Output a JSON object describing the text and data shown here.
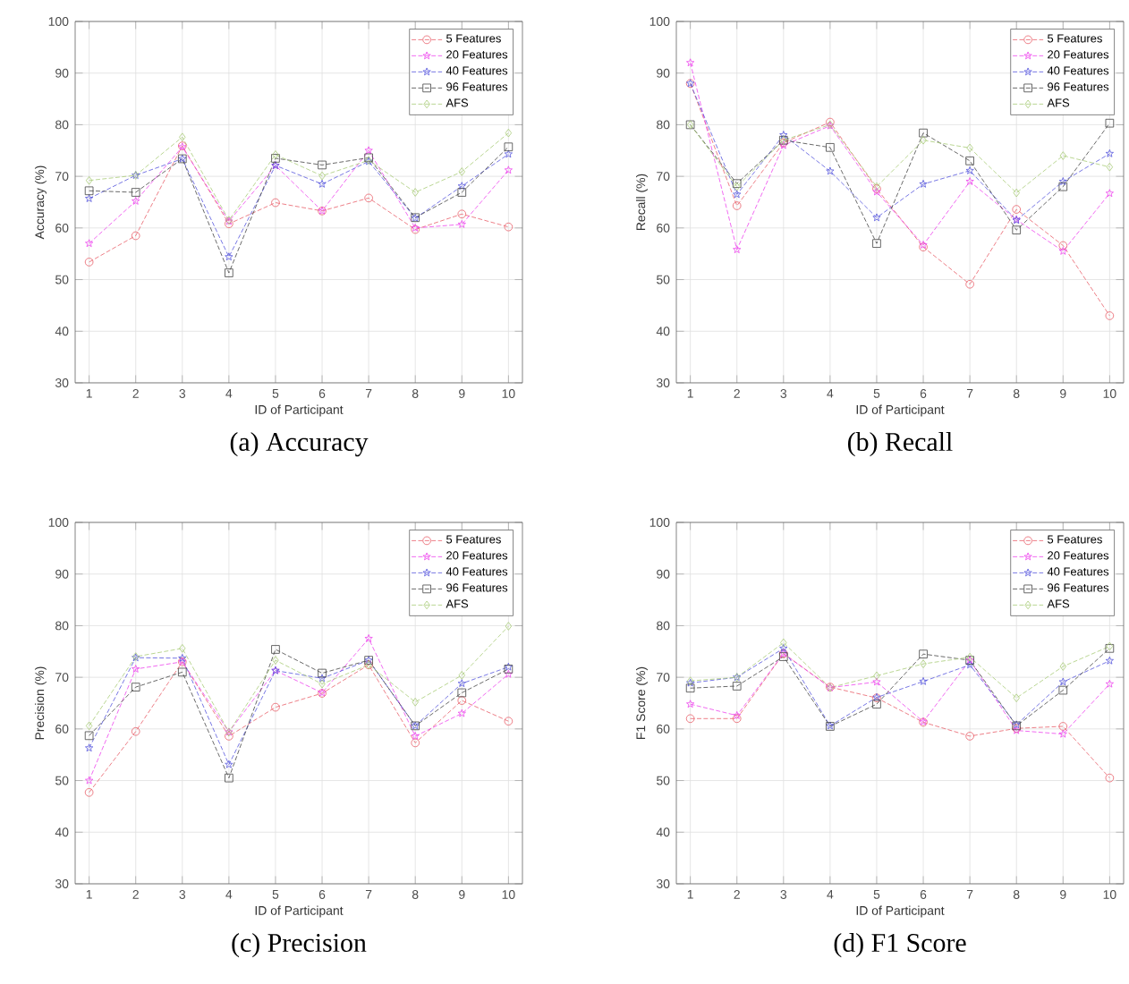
{
  "chart_data": [
    {
      "type": "line",
      "title": "(a) Accuracy",
      "xlabel": "ID of Participant",
      "ylabel": "Accuracy (%)",
      "categories": [
        "1",
        "2",
        "3",
        "4",
        "5",
        "6",
        "7",
        "8",
        "9",
        "10"
      ],
      "ylim": [
        30,
        100
      ],
      "yticks": [
        30,
        40,
        50,
        60,
        70,
        80,
        90,
        100
      ],
      "grid": true,
      "legend": "top right",
      "line_style": "dashed",
      "series": [
        {
          "name": "5 Features",
          "color": "#e8606a",
          "marker": "circle",
          "values": [
            53.4,
            58.5,
            75.9,
            60.8,
            64.9,
            63.3,
            65.8,
            59.7,
            62.7,
            60.2
          ]
        },
        {
          "name": "20 Features",
          "color": "#ee44ee",
          "marker": "star",
          "values": [
            57,
            65.2,
            75.7,
            61.3,
            72.1,
            63.3,
            75,
            60,
            60.7,
            71.2
          ]
        },
        {
          "name": "40 Features",
          "color": "#5555dd",
          "marker": "star",
          "values": [
            65.7,
            70.2,
            73.4,
            54.4,
            72.1,
            68.5,
            72.9,
            61.9,
            68.1,
            74.3
          ]
        },
        {
          "name": "96 Features",
          "color": "#444444",
          "marker": "square",
          "values": [
            67.2,
            66.9,
            73.4,
            51.3,
            73.5,
            72.2,
            73.6,
            62,
            66.9,
            75.7
          ]
        },
        {
          "name": "AFS",
          "color": "#a8cc77",
          "marker": "diamond",
          "values": [
            69.2,
            70.2,
            77.6,
            61.5,
            74.2,
            70.1,
            73.1,
            66.9,
            70.9,
            78.4
          ]
        }
      ]
    },
    {
      "type": "line",
      "title": "(b) Recall",
      "xlabel": "ID of Participant",
      "ylabel": "Recall (%)",
      "categories": [
        "1",
        "2",
        "3",
        "4",
        "5",
        "6",
        "7",
        "8",
        "9",
        "10"
      ],
      "ylim": [
        30,
        100
      ],
      "yticks": [
        30,
        40,
        50,
        60,
        70,
        80,
        90,
        100
      ],
      "grid": true,
      "legend": "top right",
      "line_style": "dashed",
      "series": [
        {
          "name": "5 Features",
          "color": "#e8606a",
          "marker": "circle",
          "values": [
            88,
            64.3,
            76.5,
            80.5,
            67.6,
            56.3,
            49.1,
            63.6,
            56.6,
            43
          ]
        },
        {
          "name": "20 Features",
          "color": "#ee44ee",
          "marker": "star",
          "values": [
            92,
            55.8,
            76,
            79.8,
            67,
            56.7,
            69,
            61.6,
            55.5,
            66.7
          ]
        },
        {
          "name": "40 Features",
          "color": "#5555dd",
          "marker": "star",
          "values": [
            88,
            66.5,
            78,
            71,
            62,
            68.5,
            71.1,
            61.5,
            69,
            74.4
          ]
        },
        {
          "name": "96 Features",
          "color": "#444444",
          "marker": "square",
          "values": [
            80,
            68.6,
            77,
            75.6,
            57,
            78.4,
            73,
            59.6,
            68,
            80.3
          ]
        },
        {
          "name": "AFS",
          "color": "#a8cc77",
          "marker": "diamond",
          "values": [
            80,
            68,
            77,
            80,
            68,
            77,
            75.5,
            66.8,
            74,
            71.8
          ]
        }
      ]
    },
    {
      "type": "line",
      "title": "(c) Precision",
      "xlabel": "ID of Participant",
      "ylabel": "Precision (%)",
      "categories": [
        "1",
        "2",
        "3",
        "4",
        "5",
        "6",
        "7",
        "8",
        "9",
        "10"
      ],
      "ylim": [
        30,
        100
      ],
      "yticks": [
        30,
        40,
        50,
        60,
        70,
        80,
        90,
        100
      ],
      "grid": true,
      "legend": "top right",
      "line_style": "dashed",
      "series": [
        {
          "name": "5 Features",
          "color": "#e8606a",
          "marker": "circle",
          "values": [
            47.7,
            59.5,
            73,
            58.6,
            64.2,
            66.9,
            72.4,
            57.3,
            65.5,
            61.5
          ]
        },
        {
          "name": "20 Features",
          "color": "#ee44ee",
          "marker": "star",
          "values": [
            50,
            71.6,
            73,
            59.4,
            71.3,
            67,
            77.5,
            58.6,
            63,
            70.6
          ]
        },
        {
          "name": "40 Features",
          "color": "#5555dd",
          "marker": "star",
          "values": [
            56.3,
            73.8,
            73.7,
            53.1,
            71.3,
            69.8,
            73.3,
            60.6,
            68.8,
            72
          ]
        },
        {
          "name": "96 Features",
          "color": "#444444",
          "marker": "square",
          "values": [
            58.7,
            68.1,
            71,
            50.5,
            75.4,
            70.8,
            73.3,
            60.6,
            67,
            71.6
          ]
        },
        {
          "name": "AFS",
          "color": "#a8cc77",
          "marker": "diamond",
          "values": [
            60.6,
            74,
            75.6,
            59.4,
            73.3,
            68.7,
            72.4,
            65.2,
            70.4,
            79.9
          ]
        }
      ]
    },
    {
      "type": "line",
      "title": "(d) F1 Score",
      "xlabel": "ID of Participant",
      "ylabel": "F1 Score (%)",
      "categories": [
        "1",
        "2",
        "3",
        "4",
        "5",
        "6",
        "7",
        "8",
        "9",
        "10"
      ],
      "ylim": [
        30,
        100
      ],
      "yticks": [
        30,
        40,
        50,
        60,
        70,
        80,
        90,
        100
      ],
      "grid": true,
      "legend": "top right",
      "line_style": "dashed",
      "series": [
        {
          "name": "5 Features",
          "color": "#e8606a",
          "marker": "circle",
          "values": [
            62,
            62,
            74.6,
            68.1,
            66,
            61.3,
            58.6,
            60.1,
            60.5,
            50.5
          ]
        },
        {
          "name": "20 Features",
          "color": "#ee44ee",
          "marker": "star",
          "values": [
            64.8,
            62.6,
            74.6,
            68,
            69.1,
            61.4,
            73.3,
            59.7,
            59,
            68.7
          ]
        },
        {
          "name": "40 Features",
          "color": "#5555dd",
          "marker": "star",
          "values": [
            68.9,
            70,
            75.6,
            60.6,
            66.1,
            69.2,
            72.4,
            60.8,
            69.1,
            73.2
          ]
        },
        {
          "name": "96 Features",
          "color": "#444444",
          "marker": "square",
          "values": [
            67.9,
            68.3,
            74,
            60.5,
            64.8,
            74.5,
            73.3,
            60.6,
            67.5,
            75.6
          ]
        },
        {
          "name": "AFS",
          "color": "#a8cc77",
          "marker": "diamond",
          "values": [
            69.3,
            70,
            76.7,
            68,
            70.3,
            72.6,
            73.9,
            66,
            72.1,
            76
          ]
        }
      ]
    }
  ]
}
